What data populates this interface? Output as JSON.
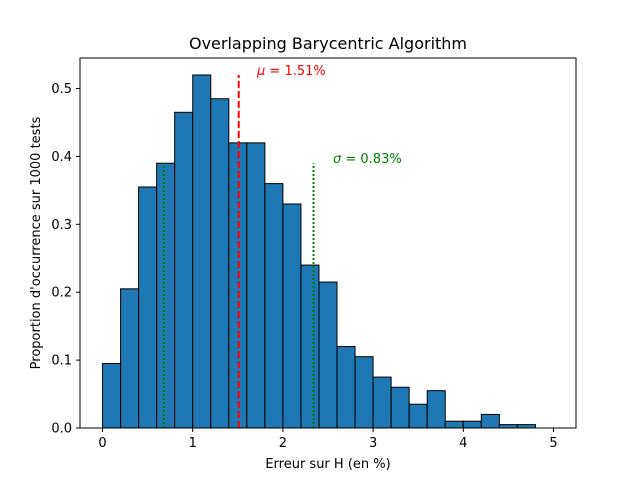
{
  "chart_data": {
    "type": "bar",
    "title": "Overlapping Barycentric Algorithm",
    "xlabel": "Erreur sur H (en %)",
    "ylabel": "Proportion d'occurrence sur 1000 tests",
    "xlim": [
      -0.25,
      5.25
    ],
    "ylim": [
      0,
      0.545
    ],
    "xticks": [
      0,
      1,
      2,
      3,
      4,
      5
    ],
    "yticks": [
      0.0,
      0.1,
      0.2,
      0.3,
      0.4,
      0.5
    ],
    "xtick_labels": [
      "0",
      "1",
      "2",
      "3",
      "4",
      "5"
    ],
    "ytick_labels": [
      "0.0",
      "0.1",
      "0.2",
      "0.3",
      "0.4",
      "0.5"
    ],
    "bar_color": "#1f77b4",
    "bin_edges": [
      0.0,
      0.2,
      0.4,
      0.6,
      0.8,
      1.0,
      1.2,
      1.4,
      1.6,
      1.8,
      2.0,
      2.2,
      2.4,
      2.6,
      2.8,
      3.0,
      3.2,
      3.4,
      3.6,
      3.8,
      4.0,
      4.2,
      4.4,
      4.6,
      4.8
    ],
    "values": [
      0.095,
      0.205,
      0.355,
      0.39,
      0.465,
      0.52,
      0.485,
      0.42,
      0.42,
      0.36,
      0.33,
      0.24,
      0.215,
      0.12,
      0.105,
      0.075,
      0.06,
      0.035,
      0.055,
      0.01,
      0.01,
      0.02,
      0.005,
      0.005
    ],
    "mean": {
      "x": 1.51,
      "label_symbol": "μ",
      "label_value": " = 1.51%",
      "color": "#ff0000",
      "line_top": 0.52
    },
    "std_lines": {
      "x": [
        0.68,
        2.34
      ],
      "top": 0.39,
      "color": "#008000",
      "label_symbol": "σ",
      "label_value": " = 0.83%"
    },
    "grid": false
  }
}
